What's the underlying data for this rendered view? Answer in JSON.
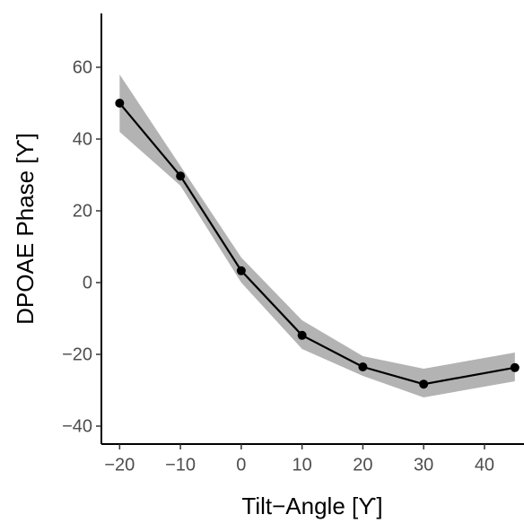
{
  "chart_data": {
    "type": "line",
    "xlabel": "Tilt−Angle [ϒ]",
    "ylabel": "DPOAE Phase [ϒ]",
    "x": [
      -20,
      -10,
      0,
      10,
      20,
      30,
      45
    ],
    "series": [
      {
        "color": "#000000",
        "band_color": "#b3b3b3",
        "values": [
          50,
          29.7,
          3.3,
          -14.7,
          -23.5,
          -28.3,
          -23.7
        ],
        "lower": [
          42,
          27,
          0,
          -18.5,
          -26,
          -32,
          -27.5
        ],
        "upper": [
          58,
          32.5,
          7,
          -10.5,
          -20.5,
          -24,
          -19.5
        ]
      }
    ],
    "xlim": [
      -23,
      46.5
    ],
    "xticks": [
      {
        "value": -20,
        "label": "−20"
      },
      {
        "value": -10,
        "label": "−10"
      },
      0,
      10,
      20,
      30,
      40
    ],
    "ylim": [
      -45,
      75
    ],
    "yticks": [
      {
        "value": -40,
        "label": "−40"
      },
      {
        "value": -20,
        "label": "−20"
      },
      0,
      20,
      40,
      60
    ],
    "grid": false
  }
}
